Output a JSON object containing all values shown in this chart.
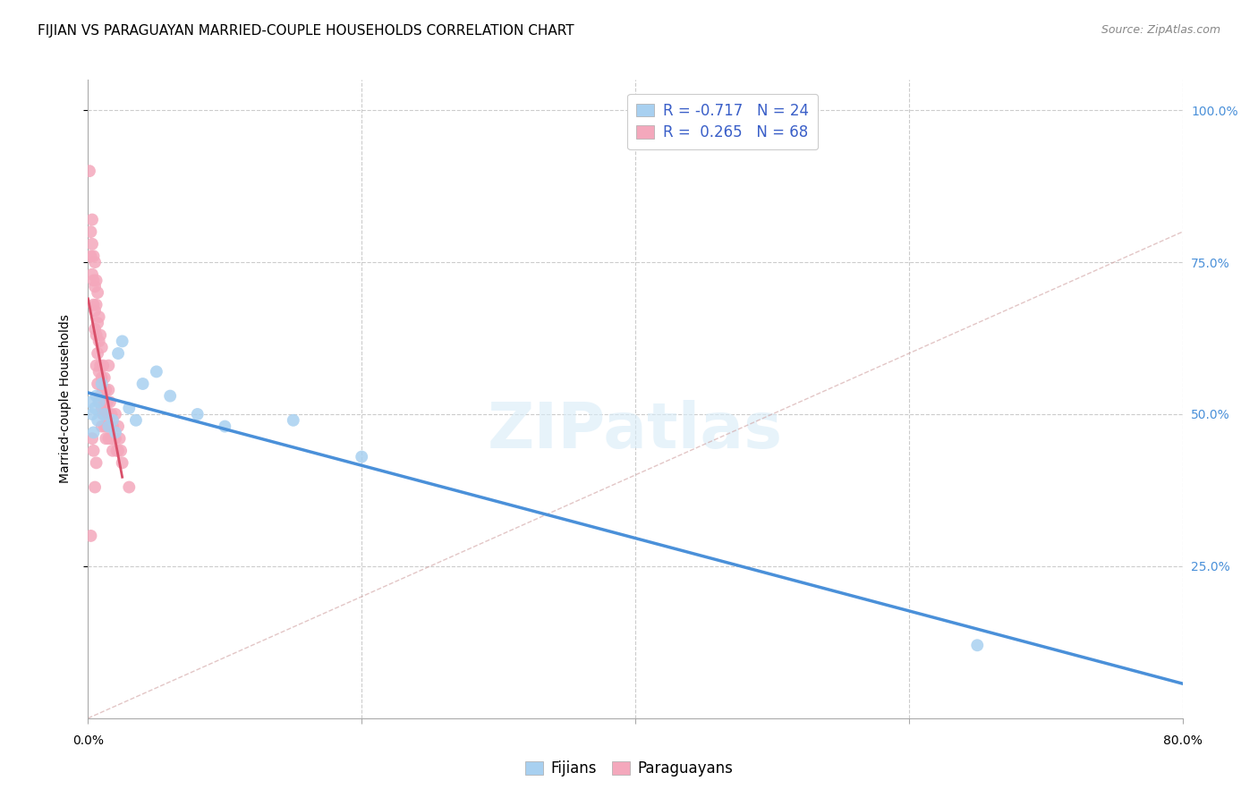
{
  "title": "FIJIAN VS PARAGUAYAN MARRIED-COUPLE HOUSEHOLDS CORRELATION CHART",
  "source": "Source: ZipAtlas.com",
  "ylabel": "Married-couple Households",
  "watermark": "ZIPatlas",
  "xlim": [
    0.0,
    0.8
  ],
  "ylim": [
    0.0,
    1.05
  ],
  "yticks": [
    0.25,
    0.5,
    0.75,
    1.0
  ],
  "ytick_labels": [
    "25.0%",
    "50.0%",
    "75.0%",
    "100.0%"
  ],
  "fijian_color": "#A8D0F0",
  "paraguayan_color": "#F4A8BC",
  "fijian_line_color": "#4A90D9",
  "paraguayan_line_color": "#D9506A",
  "diagonal_color": "#D0A0A0",
  "fijian_R": -0.717,
  "fijian_N": 24,
  "paraguayan_R": 0.265,
  "paraguayan_N": 68,
  "fijian_points": [
    [
      0.002,
      0.52
    ],
    [
      0.003,
      0.5
    ],
    [
      0.004,
      0.47
    ],
    [
      0.005,
      0.51
    ],
    [
      0.006,
      0.53
    ],
    [
      0.007,
      0.49
    ],
    [
      0.008,
      0.52
    ],
    [
      0.01,
      0.55
    ],
    [
      0.012,
      0.5
    ],
    [
      0.015,
      0.48
    ],
    [
      0.018,
      0.49
    ],
    [
      0.02,
      0.47
    ],
    [
      0.022,
      0.6
    ],
    [
      0.025,
      0.62
    ],
    [
      0.03,
      0.51
    ],
    [
      0.035,
      0.49
    ],
    [
      0.04,
      0.55
    ],
    [
      0.05,
      0.57
    ],
    [
      0.06,
      0.53
    ],
    [
      0.08,
      0.5
    ],
    [
      0.1,
      0.48
    ],
    [
      0.15,
      0.49
    ],
    [
      0.2,
      0.43
    ],
    [
      0.65,
      0.12
    ]
  ],
  "paraguayan_points": [
    [
      0.001,
      0.9
    ],
    [
      0.002,
      0.8
    ],
    [
      0.002,
      0.76
    ],
    [
      0.003,
      0.82
    ],
    [
      0.003,
      0.78
    ],
    [
      0.003,
      0.73
    ],
    [
      0.004,
      0.76
    ],
    [
      0.004,
      0.72
    ],
    [
      0.004,
      0.68
    ],
    [
      0.005,
      0.75
    ],
    [
      0.005,
      0.71
    ],
    [
      0.005,
      0.67
    ],
    [
      0.005,
      0.64
    ],
    [
      0.006,
      0.72
    ],
    [
      0.006,
      0.68
    ],
    [
      0.006,
      0.63
    ],
    [
      0.006,
      0.58
    ],
    [
      0.007,
      0.7
    ],
    [
      0.007,
      0.65
    ],
    [
      0.007,
      0.6
    ],
    [
      0.007,
      0.55
    ],
    [
      0.008,
      0.66
    ],
    [
      0.008,
      0.62
    ],
    [
      0.008,
      0.57
    ],
    [
      0.008,
      0.52
    ],
    [
      0.009,
      0.63
    ],
    [
      0.009,
      0.58
    ],
    [
      0.009,
      0.53
    ],
    [
      0.01,
      0.61
    ],
    [
      0.01,
      0.56
    ],
    [
      0.01,
      0.51
    ],
    [
      0.01,
      0.48
    ],
    [
      0.011,
      0.58
    ],
    [
      0.011,
      0.54
    ],
    [
      0.011,
      0.5
    ],
    [
      0.012,
      0.56
    ],
    [
      0.012,
      0.52
    ],
    [
      0.012,
      0.48
    ],
    [
      0.013,
      0.54
    ],
    [
      0.013,
      0.5
    ],
    [
      0.013,
      0.46
    ],
    [
      0.014,
      0.52
    ],
    [
      0.014,
      0.48
    ],
    [
      0.015,
      0.58
    ],
    [
      0.015,
      0.54
    ],
    [
      0.015,
      0.5
    ],
    [
      0.015,
      0.46
    ],
    [
      0.016,
      0.52
    ],
    [
      0.016,
      0.48
    ],
    [
      0.017,
      0.5
    ],
    [
      0.017,
      0.46
    ],
    [
      0.018,
      0.48
    ],
    [
      0.018,
      0.44
    ],
    [
      0.019,
      0.46
    ],
    [
      0.02,
      0.5
    ],
    [
      0.02,
      0.46
    ],
    [
      0.021,
      0.44
    ],
    [
      0.022,
      0.48
    ],
    [
      0.022,
      0.44
    ],
    [
      0.023,
      0.46
    ],
    [
      0.024,
      0.44
    ],
    [
      0.025,
      0.42
    ],
    [
      0.03,
      0.38
    ],
    [
      0.005,
      0.38
    ],
    [
      0.002,
      0.3
    ],
    [
      0.003,
      0.46
    ],
    [
      0.004,
      0.44
    ],
    [
      0.006,
      0.42
    ]
  ],
  "title_fontsize": 11,
  "axis_label_fontsize": 10,
  "tick_fontsize": 10,
  "legend_fontsize": 12,
  "source_fontsize": 9,
  "background_color": "#FFFFFF",
  "grid_color": "#CCCCCC"
}
